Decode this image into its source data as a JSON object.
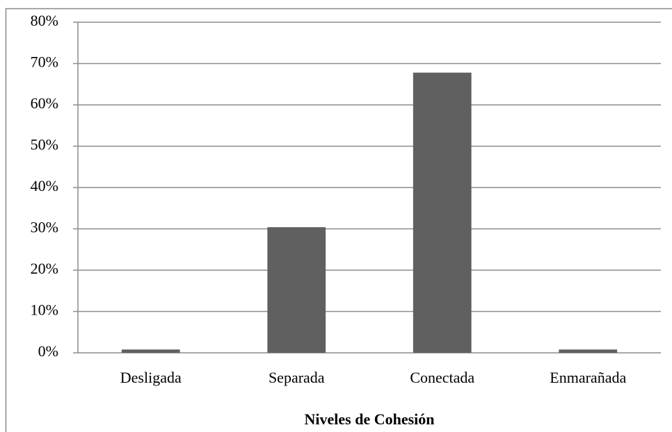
{
  "chart_data": {
    "type": "bar",
    "x_label": "Niveles de Cohesión",
    "categories": [
      "Desligada",
      "Separada",
      "Conectada",
      "Enmarañada"
    ],
    "values": [
      0.8,
      30.4,
      67.8,
      0.8
    ],
    "color": "#606060",
    "ylim": [
      0,
      80
    ],
    "yticks": [
      {
        "value": 0,
        "label": "0%"
      },
      {
        "value": 10,
        "label": "10%"
      },
      {
        "value": 20,
        "label": "20%"
      },
      {
        "value": 30,
        "label": "30%"
      },
      {
        "value": 40,
        "label": "40%"
      },
      {
        "value": 50,
        "label": "50%"
      },
      {
        "value": 60,
        "label": "60%"
      },
      {
        "value": 70,
        "label": "70%"
      },
      {
        "value": 80,
        "label": "80%"
      }
    ],
    "grid": true
  }
}
